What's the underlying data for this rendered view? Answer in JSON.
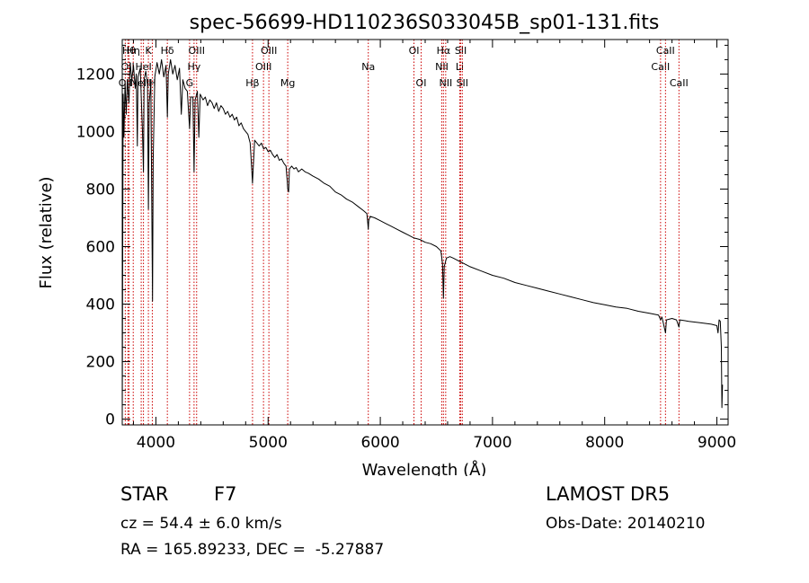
{
  "chart_data": {
    "type": "line",
    "title": "spec-56699-HD110236S033045B_sp01-131.fits",
    "xlabel": "Wavelength (Å)",
    "ylabel": "Flux (relative)",
    "xlim": [
      3700,
      9100
    ],
    "ylim": [
      -20,
      1320
    ],
    "x_ticks": [
      4000,
      5000,
      6000,
      7000,
      8000,
      9000
    ],
    "y_ticks": [
      0,
      200,
      400,
      600,
      800,
      1000,
      1200
    ],
    "grid": false,
    "line_color": "#000000",
    "marker_color": "#cc0000",
    "spectrum": [
      [
        3700,
        0
      ],
      [
        3703,
        470
      ],
      [
        3708,
        1130
      ],
      [
        3715,
        980
      ],
      [
        3725,
        1170
      ],
      [
        3735,
        1060
      ],
      [
        3745,
        1180
      ],
      [
        3760,
        1100
      ],
      [
        3770,
        1240
      ],
      [
        3785,
        1180
      ],
      [
        3800,
        1230
      ],
      [
        3815,
        1150
      ],
      [
        3825,
        1200
      ],
      [
        3835,
        950
      ],
      [
        3840,
        1190
      ],
      [
        3860,
        1220
      ],
      [
        3880,
        1000
      ],
      [
        3889,
        860
      ],
      [
        3895,
        1180
      ],
      [
        3910,
        1210
      ],
      [
        3925,
        1160
      ],
      [
        3933,
        730
      ],
      [
        3940,
        1100
      ],
      [
        3955,
        1170
      ],
      [
        3965,
        650
      ],
      [
        3970,
        410
      ],
      [
        3976,
        900
      ],
      [
        3990,
        1190
      ],
      [
        4010,
        1240
      ],
      [
        4030,
        1200
      ],
      [
        4050,
        1250
      ],
      [
        4070,
        1190
      ],
      [
        4090,
        1230
      ],
      [
        4102,
        1050
      ],
      [
        4110,
        1200
      ],
      [
        4130,
        1250
      ],
      [
        4150,
        1200
      ],
      [
        4170,
        1230
      ],
      [
        4190,
        1180
      ],
      [
        4210,
        1220
      ],
      [
        4226,
        1060
      ],
      [
        4240,
        1180
      ],
      [
        4260,
        1150
      ],
      [
        4280,
        1140
      ],
      [
        4300,
        1010
      ],
      [
        4310,
        1120
      ],
      [
        4330,
        1120
      ],
      [
        4340,
        860
      ],
      [
        4350,
        1110
      ],
      [
        4370,
        1140
      ],
      [
        4383,
        980
      ],
      [
        4395,
        1130
      ],
      [
        4420,
        1110
      ],
      [
        4440,
        1120
      ],
      [
        4460,
        1090
      ],
      [
        4480,
        1110
      ],
      [
        4500,
        1100
      ],
      [
        4520,
        1080
      ],
      [
        4540,
        1100
      ],
      [
        4560,
        1070
      ],
      [
        4580,
        1090
      ],
      [
        4600,
        1080
      ],
      [
        4620,
        1060
      ],
      [
        4640,
        1070
      ],
      [
        4660,
        1050
      ],
      [
        4680,
        1060
      ],
      [
        4700,
        1040
      ],
      [
        4720,
        1050
      ],
      [
        4740,
        1020
      ],
      [
        4760,
        1030
      ],
      [
        4780,
        1010
      ],
      [
        4800,
        1000
      ],
      [
        4820,
        990
      ],
      [
        4840,
        960
      ],
      [
        4855,
        860
      ],
      [
        4861,
        820
      ],
      [
        4868,
        880
      ],
      [
        4880,
        970
      ],
      [
        4900,
        960
      ],
      [
        4920,
        950
      ],
      [
        4940,
        960
      ],
      [
        4960,
        940
      ],
      [
        4980,
        945
      ],
      [
        5000,
        930
      ],
      [
        5020,
        935
      ],
      [
        5040,
        920
      ],
      [
        5060,
        910
      ],
      [
        5080,
        920
      ],
      [
        5100,
        900
      ],
      [
        5120,
        905
      ],
      [
        5140,
        890
      ],
      [
        5160,
        880
      ],
      [
        5170,
        830
      ],
      [
        5175,
        800
      ],
      [
        5183,
        790
      ],
      [
        5190,
        870
      ],
      [
        5210,
        880
      ],
      [
        5230,
        870
      ],
      [
        5250,
        875
      ],
      [
        5270,
        860
      ],
      [
        5300,
        870
      ],
      [
        5330,
        860
      ],
      [
        5360,
        855
      ],
      [
        5400,
        845
      ],
      [
        5450,
        835
      ],
      [
        5500,
        820
      ],
      [
        5550,
        810
      ],
      [
        5600,
        790
      ],
      [
        5650,
        780
      ],
      [
        5700,
        765
      ],
      [
        5750,
        755
      ],
      [
        5800,
        740
      ],
      [
        5850,
        725
      ],
      [
        5880,
        715
      ],
      [
        5889,
        680
      ],
      [
        5893,
        660
      ],
      [
        5897,
        690
      ],
      [
        5910,
        705
      ],
      [
        5950,
        700
      ],
      [
        6000,
        690
      ],
      [
        6050,
        680
      ],
      [
        6100,
        670
      ],
      [
        6150,
        660
      ],
      [
        6200,
        650
      ],
      [
        6250,
        640
      ],
      [
        6300,
        630
      ],
      [
        6350,
        625
      ],
      [
        6400,
        615
      ],
      [
        6450,
        610
      ],
      [
        6500,
        600
      ],
      [
        6540,
        585
      ],
      [
        6555,
        540
      ],
      [
        6563,
        420
      ],
      [
        6570,
        530
      ],
      [
        6590,
        560
      ],
      [
        6620,
        565
      ],
      [
        6650,
        560
      ],
      [
        6700,
        550
      ],
      [
        6750,
        540
      ],
      [
        6800,
        530
      ],
      [
        6900,
        515
      ],
      [
        7000,
        500
      ],
      [
        7100,
        490
      ],
      [
        7200,
        475
      ],
      [
        7300,
        465
      ],
      [
        7400,
        455
      ],
      [
        7500,
        445
      ],
      [
        7600,
        435
      ],
      [
        7700,
        425
      ],
      [
        7800,
        415
      ],
      [
        7900,
        405
      ],
      [
        8000,
        398
      ],
      [
        8100,
        390
      ],
      [
        8200,
        385
      ],
      [
        8300,
        375
      ],
      [
        8400,
        368
      ],
      [
        8480,
        362
      ],
      [
        8498,
        345
      ],
      [
        8510,
        355
      ],
      [
        8542,
        300
      ],
      [
        8550,
        345
      ],
      [
        8600,
        350
      ],
      [
        8640,
        345
      ],
      [
        8662,
        320
      ],
      [
        8670,
        345
      ],
      [
        8750,
        340
      ],
      [
        8850,
        335
      ],
      [
        8950,
        330
      ],
      [
        9000,
        325
      ],
      [
        9010,
        300
      ],
      [
        9020,
        345
      ],
      [
        9030,
        340
      ],
      [
        9040,
        250
      ],
      [
        9045,
        40
      ],
      [
        9050,
        120
      ]
    ],
    "line_markers": [
      {
        "wavelength": 3727,
        "row": 2,
        "label": "OII"
      },
      {
        "wavelength": 3750,
        "row": 1,
        "label": "OII"
      },
      {
        "wavelength": 3760,
        "row": 0,
        "label": "Hθ"
      },
      {
        "wavelength": 3798,
        "row": 0,
        "label": "Hη"
      },
      {
        "wavelength": 3869,
        "row": 2,
        "label": "NeIII"
      },
      {
        "wavelength": 3889,
        "row": 1,
        "label": "HeI"
      },
      {
        "wavelength": 3933,
        "row": 0,
        "label": "K"
      },
      {
        "wavelength": 3968,
        "row": 2,
        "label": "H"
      },
      {
        "wavelength": 4102,
        "row": 0,
        "label": "Hδ"
      },
      {
        "wavelength": 4300,
        "row": 2,
        "label": "G"
      },
      {
        "wavelength": 4340,
        "row": 1,
        "label": "Hγ"
      },
      {
        "wavelength": 4363,
        "row": 0,
        "label": "OIII"
      },
      {
        "wavelength": 4861,
        "row": 2,
        "label": "Hβ"
      },
      {
        "wavelength": 4959,
        "row": 1,
        "label": "OIII"
      },
      {
        "wavelength": 5007,
        "row": 0,
        "label": "OIII"
      },
      {
        "wavelength": 5175,
        "row": 2,
        "label": "Mg"
      },
      {
        "wavelength": 5893,
        "row": 1,
        "label": "Na"
      },
      {
        "wavelength": 6300,
        "row": 0,
        "label": "OI"
      },
      {
        "wavelength": 6364,
        "row": 2,
        "label": "OI"
      },
      {
        "wavelength": 6548,
        "row": 1,
        "label": "NII"
      },
      {
        "wavelength": 6563,
        "row": 0,
        "label": "Hα"
      },
      {
        "wavelength": 6583,
        "row": 2,
        "label": "NII"
      },
      {
        "wavelength": 6708,
        "row": 1,
        "label": "Li"
      },
      {
        "wavelength": 6717,
        "row": 0,
        "label": "SII"
      },
      {
        "wavelength": 6731,
        "row": 2,
        "label": "SII"
      },
      {
        "wavelength": 8498,
        "row": 1,
        "label": "CaII"
      },
      {
        "wavelength": 8542,
        "row": 0,
        "label": "CaII"
      },
      {
        "wavelength": 8662,
        "row": 2,
        "label": "CaII"
      }
    ]
  },
  "footer": {
    "object_class": "STAR",
    "subclass": "F7",
    "survey": "LAMOST DR5",
    "redshift": "cz = 54.4 ± 6.0 km/s",
    "obs_date": "Obs-Date: 20140210",
    "coords": "RA = 165.89233, DEC =  -5.27887"
  }
}
